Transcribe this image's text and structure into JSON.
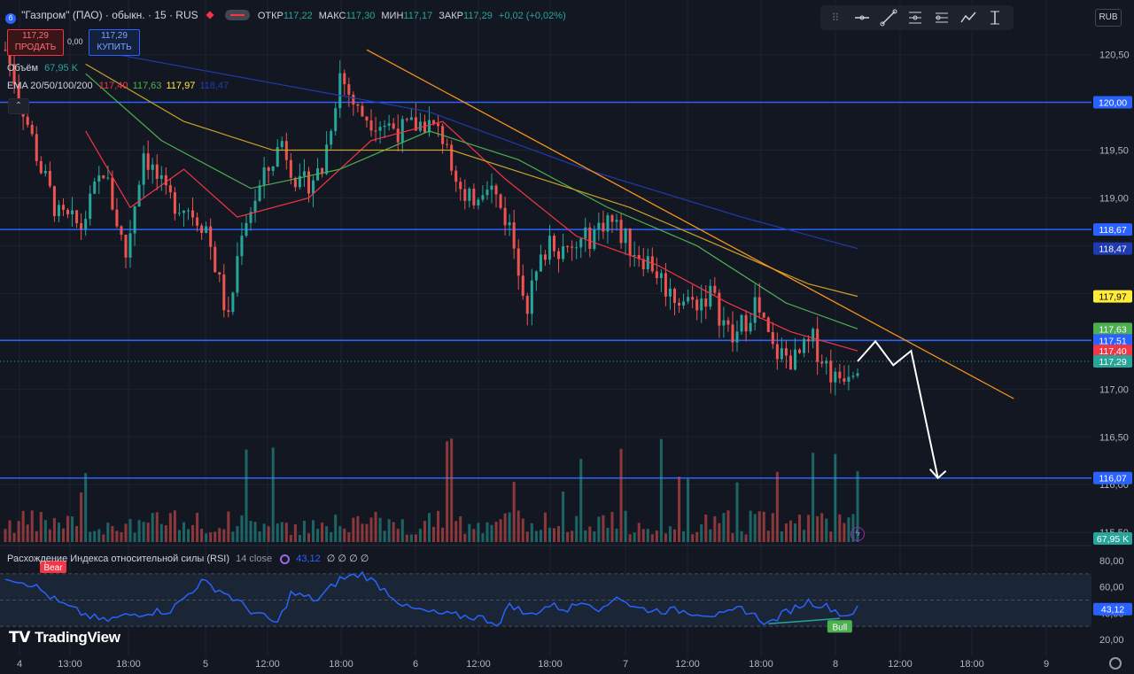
{
  "header": {
    "symbol_title": "\"Газпром\" (ПАО) · обыкн. · 15 · RUS",
    "ohlc_open_label": "ОТКР",
    "ohlc_open": "117,22",
    "ohlc_high_label": "МАКС",
    "ohlc_high": "117,30",
    "ohlc_low_label": "МИН",
    "ohlc_low": "117,17",
    "ohlc_close_label": "ЗАКР",
    "ohlc_close": "117,29",
    "change": "+0,02 (+0,02%)"
  },
  "trade": {
    "sell_price": "117,29",
    "sell_label": "ПРОДАТЬ",
    "spread": "0,00",
    "buy_price": "117,29",
    "buy_label": "КУПИТЬ"
  },
  "legend": {
    "volume_label": "Объём",
    "volume_value": "67,95 K",
    "ema_label": "EMA 20/50/100/200",
    "ema20": "117,40",
    "ema50": "117,63",
    "ema100": "117,97",
    "ema200": "118,47"
  },
  "currency": "RUB",
  "rsi": {
    "title": "Расхождение Индекса относительной силы (RSI)",
    "params": "14 close",
    "value": "43,12",
    "extra": "∅ ∅ ∅ ∅",
    "bear_label": "Bear",
    "bull_label": "Bull",
    "axis_ticks": [
      "80,00",
      "60,00",
      "40,00",
      "20,00"
    ],
    "value_badge": "43,12"
  },
  "branding": "TradingView",
  "icons": [
    "horizontal-line-icon",
    "trend-line-icon",
    "fib-icon",
    "long-position-icon",
    "path-icon",
    "anchored-vwap-icon",
    "symbol-logo-icon",
    "flash-icon",
    "settings-icon"
  ],
  "colors": {
    "background": "#131722",
    "up": "#26a69a",
    "down": "#ef5350",
    "ema20": "#f23645",
    "ema50": "#4caf50",
    "ema100": "#c9a227",
    "ema200": "#1e3cb0",
    "levels": "#2962ff",
    "trendline": "#f7931a",
    "rsi": "#2962ff"
  },
  "chart_data": {
    "type": "candlestick",
    "interval": "15",
    "x_tick_labels": [
      "4",
      "13:00",
      "18:00",
      "5",
      "12:00",
      "18:00",
      "6",
      "12:00",
      "18:00",
      "7",
      "12:00",
      "18:00",
      "8",
      "12:00",
      "18:00",
      "9"
    ],
    "y_tick_labels": [
      "120,50",
      "120,00",
      "119,50",
      "119,00",
      "118,50",
      "118,00",
      "117,50",
      "117,00",
      "116,50",
      "116,00",
      "115,50"
    ],
    "ylim": [
      115.4,
      120.7
    ],
    "horizontal_levels": [
      120.0,
      118.67,
      117.51,
      116.07
    ],
    "price_badges": [
      {
        "label": "120,00",
        "value": 120.0,
        "color": "#2962ff"
      },
      {
        "label": "118,67",
        "value": 118.67,
        "color": "#2962ff"
      },
      {
        "label": "118,47",
        "value": 118.47,
        "color": "#1e3cb0"
      },
      {
        "label": "117,97",
        "value": 117.97,
        "color": "#ffeb3b"
      },
      {
        "label": "117,63",
        "value": 117.63,
        "color": "#4caf50"
      },
      {
        "label": "117,51",
        "value": 117.51,
        "color": "#2962ff"
      },
      {
        "label": "117,40",
        "value": 117.4,
        "color": "#f23645"
      },
      {
        "label": "117,29",
        "value": 117.29,
        "color": "#26a69a"
      },
      {
        "label": "116,07",
        "value": 116.07,
        "color": "#2962ff"
      }
    ],
    "volume_badge": "67,95 K",
    "price_anchors": [
      [
        0,
        120.55
      ],
      [
        3,
        120.1
      ],
      [
        8,
        119.3
      ],
      [
        12,
        118.8
      ],
      [
        17,
        118.7
      ],
      [
        22,
        119.3
      ],
      [
        27,
        118.4
      ],
      [
        31,
        119.5
      ],
      [
        36,
        119.0
      ],
      [
        41,
        118.9
      ],
      [
        45,
        118.7
      ],
      [
        50,
        117.7
      ],
      [
        53,
        118.7
      ],
      [
        57,
        119.1
      ],
      [
        62,
        119.6
      ],
      [
        66,
        119.1
      ],
      [
        71,
        119.3
      ],
      [
        75,
        120.3
      ],
      [
        79,
        119.9
      ],
      [
        84,
        119.8
      ],
      [
        89,
        119.7
      ],
      [
        94,
        119.8
      ],
      [
        99,
        119.6
      ],
      [
        103,
        118.9
      ],
      [
        108,
        119.2
      ],
      [
        113,
        118.7
      ],
      [
        117,
        117.9
      ],
      [
        122,
        118.6
      ],
      [
        126,
        118.4
      ],
      [
        131,
        118.6
      ],
      [
        135,
        118.8
      ],
      [
        140,
        118.5
      ],
      [
        145,
        118.3
      ],
      [
        149,
        118.0
      ],
      [
        154,
        117.9
      ],
      [
        158,
        118.0
      ],
      [
        163,
        117.5
      ],
      [
        168,
        117.9
      ],
      [
        172,
        117.4
      ],
      [
        177,
        117.3
      ],
      [
        181,
        117.5
      ],
      [
        186,
        117.1
      ],
      [
        191,
        117.3
      ]
    ],
    "ema_anchors": {
      "ema20": [
        [
          18,
          119.7
        ],
        [
          28,
          118.9
        ],
        [
          40,
          119.3
        ],
        [
          52,
          118.8
        ],
        [
          68,
          119.0
        ],
        [
          82,
          119.6
        ],
        [
          98,
          119.8
        ],
        [
          112,
          119.2
        ],
        [
          128,
          118.6
        ],
        [
          146,
          118.3
        ],
        [
          162,
          117.9
        ],
        [
          176,
          117.6
        ],
        [
          191,
          117.4
        ]
      ],
      "ema50": [
        [
          18,
          120.3
        ],
        [
          35,
          119.6
        ],
        [
          55,
          119.1
        ],
        [
          75,
          119.3
        ],
        [
          95,
          119.7
        ],
        [
          115,
          119.4
        ],
        [
          135,
          118.9
        ],
        [
          155,
          118.5
        ],
        [
          175,
          117.9
        ],
        [
          191,
          117.63
        ]
      ],
      "ema100": [
        [
          18,
          120.4
        ],
        [
          40,
          119.8
        ],
        [
          60,
          119.5
        ],
        [
          80,
          119.5
        ],
        [
          100,
          119.5
        ],
        [
          120,
          119.2
        ],
        [
          140,
          118.9
        ],
        [
          160,
          118.5
        ],
        [
          180,
          118.1
        ],
        [
          191,
          117.97
        ]
      ],
      "ema200": [
        [
          25,
          120.5
        ],
        [
          60,
          120.2
        ],
        [
          95,
          119.9
        ],
        [
          130,
          119.3
        ],
        [
          165,
          118.8
        ],
        [
          191,
          118.47
        ]
      ]
    },
    "trendline": [
      [
        81,
        120.55
      ],
      [
        226,
        116.9
      ]
    ],
    "projection_path": [
      [
        191,
        117.29
      ],
      [
        195,
        117.5
      ],
      [
        199,
        117.25
      ],
      [
        203,
        117.4
      ],
      [
        209,
        116.07
      ]
    ],
    "rsi": {
      "ylim": [
        20,
        80
      ],
      "upper": 70,
      "lower": 30,
      "mid": 50,
      "last": 43.12,
      "anchors": [
        [
          0,
          68
        ],
        [
          6,
          62
        ],
        [
          12,
          48
        ],
        [
          17,
          40
        ],
        [
          22,
          34
        ],
        [
          27,
          38
        ],
        [
          32,
          41
        ],
        [
          37,
          42
        ],
        [
          44,
          64
        ],
        [
          49,
          56
        ],
        [
          55,
          42
        ],
        [
          61,
          32
        ],
        [
          64,
          55
        ],
        [
          70,
          50
        ],
        [
          75,
          66
        ],
        [
          80,
          70
        ],
        [
          85,
          58
        ],
        [
          90,
          44
        ],
        [
          96,
          40
        ],
        [
          101,
          38
        ],
        [
          106,
          37
        ],
        [
          111,
          32
        ],
        [
          113,
          48
        ],
        [
          117,
          38
        ],
        [
          122,
          46
        ],
        [
          126,
          43
        ],
        [
          130,
          50
        ],
        [
          134,
          42
        ],
        [
          137,
          54
        ],
        [
          141,
          44
        ],
        [
          146,
          42
        ],
        [
          151,
          42
        ],
        [
          156,
          40
        ],
        [
          161,
          38
        ],
        [
          165,
          44
        ],
        [
          169,
          36
        ],
        [
          171,
          32
        ],
        [
          175,
          41
        ],
        [
          180,
          49
        ],
        [
          185,
          44
        ],
        [
          188,
          38
        ],
        [
          191,
          43
        ]
      ],
      "divergence_line": [
        [
          171,
          32
        ],
        [
          187,
          36
        ]
      ]
    }
  }
}
